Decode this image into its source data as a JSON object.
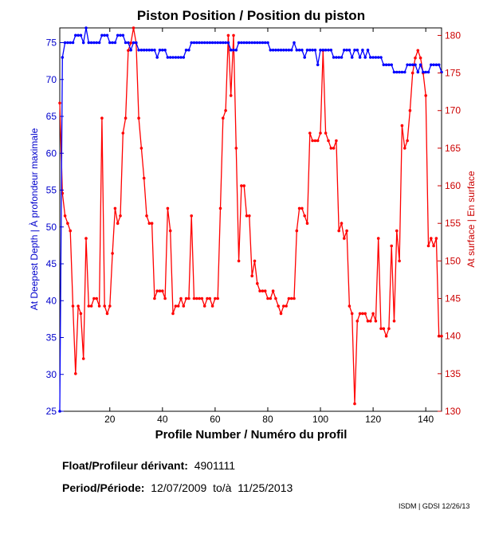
{
  "chart_data": {
    "type": "line",
    "title": "Piston Position / Position du piston",
    "xlabel": "Profile Number / Numéro du profil",
    "ylabel_left": "At Deepest Depth | À profondeur maximale",
    "ylabel_right": "At surface | En surface",
    "xlim": [
      1,
      146
    ],
    "ylim_left": [
      25,
      77
    ],
    "ylim_right": [
      130,
      181
    ],
    "xticks": [
      20,
      40,
      60,
      80,
      100,
      120,
      140
    ],
    "yticks_left": [
      25,
      30,
      35,
      40,
      45,
      50,
      55,
      60,
      65,
      70,
      75
    ],
    "yticks_right": [
      130,
      135,
      140,
      145,
      150,
      155,
      160,
      165,
      170,
      175,
      180
    ],
    "grid": false,
    "colors": {
      "deepest": "#0000ff",
      "surface": "#ff0000",
      "left_axis": "#0000cc",
      "right_axis": "#cc0000"
    },
    "series": [
      {
        "axis": "left",
        "values": [
          25,
          73,
          75,
          75,
          75,
          75,
          76,
          76,
          76,
          75,
          77,
          75,
          75,
          75,
          75,
          75,
          76,
          76,
          76,
          75,
          75,
          75,
          76,
          76,
          76,
          75,
          75,
          74,
          75,
          75,
          74,
          74,
          74,
          74,
          74,
          74,
          74,
          73,
          74,
          74,
          74,
          73,
          73,
          73,
          73,
          73,
          73,
          73,
          74,
          74,
          75,
          75,
          75,
          75,
          75,
          75,
          75,
          75,
          75,
          75,
          75,
          75,
          75,
          75,
          75,
          74,
          74,
          74,
          75,
          75,
          75,
          75,
          75,
          75,
          75,
          75,
          75,
          75,
          75,
          75,
          74,
          74,
          74,
          74,
          74,
          74,
          74,
          74,
          74,
          75,
          74,
          74,
          74,
          73,
          74,
          74,
          74,
          74,
          72,
          74,
          74,
          74,
          74,
          74,
          73,
          73,
          73,
          73,
          74,
          74,
          74,
          73,
          74,
          74,
          73,
          74,
          73,
          74,
          73,
          73,
          73,
          73,
          73,
          72,
          72,
          72,
          72,
          71,
          71,
          71,
          71,
          71,
          72,
          72,
          72,
          72,
          71,
          72,
          71,
          71,
          71,
          72,
          72,
          72,
          72,
          71
        ]
      },
      {
        "axis": "right",
        "values": [
          171,
          159,
          156,
          155,
          154,
          144,
          135,
          144,
          143,
          137,
          153,
          144,
          144,
          145,
          145,
          144,
          169,
          144,
          143,
          144,
          151,
          157,
          155,
          156,
          167,
          169,
          178,
          179,
          181,
          179,
          169,
          165,
          161,
          156,
          155,
          155,
          145,
          146,
          146,
          146,
          145,
          157,
          154,
          143,
          144,
          144,
          145,
          144,
          145,
          145,
          156,
          145,
          145,
          145,
          145,
          144,
          145,
          145,
          144,
          145,
          145,
          157,
          169,
          170,
          180,
          172,
          180,
          165,
          150,
          160,
          160,
          156,
          156,
          148,
          150,
          147,
          146,
          146,
          146,
          145,
          145,
          146,
          145,
          144,
          143,
          144,
          144,
          145,
          145,
          145,
          154,
          157,
          157,
          156,
          155,
          167,
          166,
          166,
          166,
          167,
          178,
          167,
          166,
          165,
          165,
          166,
          154,
          155,
          153,
          154,
          144,
          143,
          131,
          142,
          143,
          143,
          143,
          142,
          142,
          143,
          142,
          153,
          141,
          141,
          140,
          141,
          152,
          142,
          154,
          150,
          168,
          165,
          166,
          170,
          175,
          177,
          178,
          177,
          175,
          172,
          152,
          153,
          152,
          153,
          140,
          140
        ]
      }
    ]
  },
  "info": {
    "float_label": "Float/Profileur dérivant:",
    "float_value": "4901111",
    "period_label": "Period/Période:",
    "period_start": "12/07/2009",
    "period_sep": "to/à",
    "period_end": "11/25/2013",
    "credit": "ISDM | GDSI 12/26/13"
  }
}
